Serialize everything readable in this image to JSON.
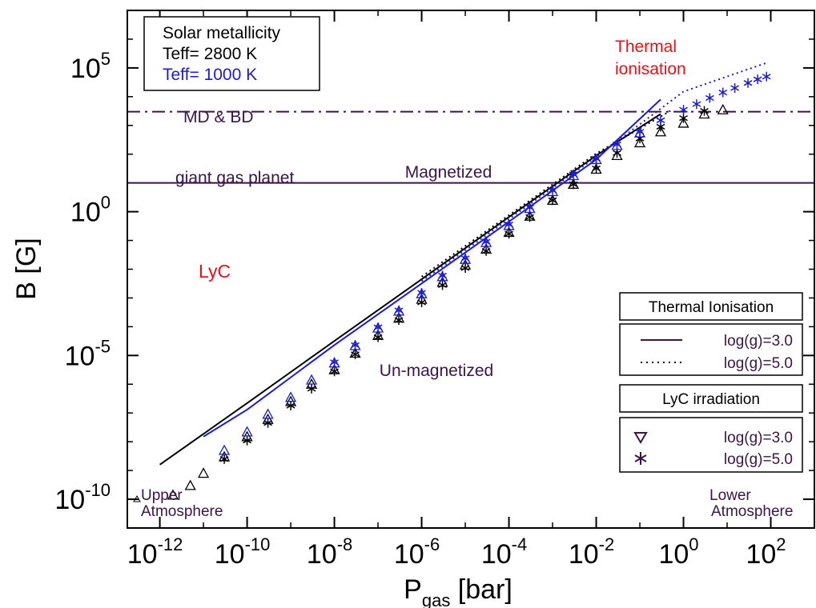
{
  "chart_data": {
    "type": "scatter",
    "xlabel": "P",
    "xlabel_sub": "gas",
    "xlabel_unit": " [bar]",
    "ylabel": "B [G]",
    "x_scale": "log",
    "y_scale": "log",
    "xlim": [
      1.8e-13,
      1000
    ],
    "ylim": [
      1e-11,
      10000000.0
    ],
    "x_ticks": [
      {
        "base": "10",
        "exp": "-12",
        "value": 1e-12
      },
      {
        "base": "10",
        "exp": "-10",
        "value": 1e-10
      },
      {
        "base": "10",
        "exp": "-8",
        "value": 1e-08
      },
      {
        "base": "10",
        "exp": "-6",
        "value": 1e-06
      },
      {
        "base": "10",
        "exp": "-4",
        "value": 0.0001
      },
      {
        "base": "10",
        "exp": "-2",
        "value": 0.01
      },
      {
        "base": "10",
        "exp": "0",
        "value": 1
      },
      {
        "base": "10",
        "exp": "2",
        "value": 100
      }
    ],
    "y_ticks": [
      {
        "base": "10",
        "exp": "-10",
        "value": 1e-10
      },
      {
        "base": "10",
        "exp": "-5",
        "value": 1e-05
      },
      {
        "base": "10",
        "exp": "0",
        "value": 1
      },
      {
        "base": "10",
        "exp": "5",
        "value": 100000
      }
    ],
    "reference_lines": [
      {
        "label": "MD & BD",
        "y": 3000,
        "style": "dash-dot",
        "color": "#3b1548"
      },
      {
        "label": "giant gas planet",
        "y": 10,
        "style": "solid",
        "color": "#3b1548"
      }
    ],
    "annotations": [
      {
        "text": "Thermal",
        "color": "#e8111a",
        "x": 10,
        "y": 220000
      },
      {
        "text": "ionisation",
        "color": "#e8111a",
        "x": 10,
        "y": 55000
      },
      {
        "text": "Magnetized",
        "color": "#3b1548",
        "x": 8e-06,
        "y": 25
      },
      {
        "text": "LyC",
        "color": "#e8111a",
        "x": 2e-11,
        "y": 0.002
      },
      {
        "text": "Un-magnetized",
        "color": "#3b1548",
        "x": 1e-05,
        "y": 3e-06
      },
      {
        "text": "Upper",
        "color": "#3b1548",
        "x": 6e-12,
        "y": 3.3e-10
      },
      {
        "text": "Atmosphere",
        "color": "#3b1548",
        "x": 6e-12,
        "y": 5.5e-11
      },
      {
        "text": "Lower",
        "color": "#3b1548",
        "x": 20,
        "y": 3.3e-10
      },
      {
        "text": "Atmosphere",
        "color": "#3b1548",
        "x": 20,
        "y": 5.5e-11
      }
    ],
    "legend_top_left": {
      "entries": [
        {
          "text": "Solar metallicity",
          "color": "#000000"
        },
        {
          "text": "Teff= 2800 K",
          "color": "#000000"
        },
        {
          "text": "Teff= 1000 K",
          "color": "#1a1ad6"
        }
      ]
    },
    "legend_thermal": {
      "title": "Thermal Ionisation",
      "entries": [
        {
          "text": "log(g)=3.0",
          "style": "solid"
        },
        {
          "text": "log(g)=5.0",
          "style": "dotted"
        }
      ]
    },
    "legend_lyc": {
      "title": "LyC irradiation",
      "entries": [
        {
          "text": "log(g)=3.0",
          "marker": "triangle"
        },
        {
          "text": "log(g)=5.0",
          "marker": "asterisk"
        }
      ]
    },
    "series": [
      {
        "teff": "2800 K",
        "model": "Thermal Ionisation",
        "logg": "3.0",
        "style": "solid",
        "color": "#000000",
        "x": [
          1e-12,
          1e-10,
          1e-08,
          1e-06,
          0.0001,
          0.01,
          0.3
        ],
        "y": [
          1.6e-09,
          2.2e-07,
          3.2e-05,
          0.0045,
          0.65,
          90,
          2500
        ]
      },
      {
        "teff": "2800 K",
        "model": "Thermal Ionisation",
        "logg": "5.0",
        "style": "dotted",
        "color": "#000000",
        "x": [
          1e-06,
          0.0001,
          0.01,
          0.5
        ],
        "y": [
          0.0055,
          0.75,
          105,
          3200
        ]
      },
      {
        "teff": "1000 K",
        "model": "Thermal Ionisation",
        "logg": "3.0",
        "style": "solid",
        "color": "#1a1ad6",
        "x": [
          1e-11,
          1e-10,
          1e-08,
          1e-06,
          0.0001,
          0.01,
          0.3
        ],
        "y": [
          1.5e-08,
          1.3e-07,
          2.3e-05,
          0.0032,
          0.45,
          65,
          8000
        ]
      },
      {
        "teff": "1000 K",
        "model": "Thermal Ionisation",
        "logg": "5.0",
        "style": "dotted",
        "color": "#1a1ad6",
        "x": [
          1e-06,
          0.0001,
          0.01,
          1,
          80
        ],
        "y": [
          0.0038,
          0.55,
          80,
          15000,
          150000
        ]
      },
      {
        "teff": "2800 K",
        "model": "LyC irradiation",
        "logg": "3.0",
        "marker": "triangle",
        "color": "#000000",
        "x": [
          2e-12,
          5e-12,
          1e-11,
          3e-11,
          1e-10,
          3e-10,
          1e-09,
          3e-09,
          1e-08,
          3e-08,
          1e-07,
          3e-07,
          1e-06,
          3e-06,
          1e-05,
          3e-05,
          0.0001,
          0.0003,
          0.001,
          0.003,
          0.01,
          0.03,
          0.1,
          0.3,
          1,
          3,
          8
        ],
        "y": [
          1.4e-10,
          3e-10,
          8e-10,
          3e-09,
          1.5e-08,
          6e-08,
          2.5e-07,
          1e-06,
          3.2e-06,
          1.2e-05,
          5e-05,
          0.0002,
          0.0009,
          0.0035,
          0.014,
          0.05,
          0.19,
          0.7,
          2.5,
          9,
          30,
          90,
          250,
          600,
          1200,
          2500,
          3500
        ]
      },
      {
        "teff": "2800 K",
        "model": "LyC irradiation",
        "logg": "5.0",
        "marker": "asterisk",
        "color": "#000000",
        "x": [
          3e-11,
          1e-10,
          3e-10,
          1e-09,
          3e-09,
          1e-08,
          3e-08,
          1e-07,
          3e-07,
          1e-06,
          3e-06,
          1e-05,
          3e-05,
          0.0001,
          0.0003,
          0.001,
          0.003,
          0.01,
          0.03,
          0.1,
          0.3,
          1,
          3
        ],
        "y": [
          2.5e-09,
          1.1e-08,
          4.5e-08,
          1.8e-07,
          7e-07,
          2.8e-06,
          1.1e-05,
          4.3e-05,
          0.00017,
          0.0007,
          0.0028,
          0.011,
          0.043,
          0.17,
          0.65,
          2.5,
          9,
          32,
          110,
          350,
          900,
          1800,
          3200
        ]
      },
      {
        "teff": "1000 K",
        "model": "LyC irradiation",
        "logg": "3.0",
        "marker": "triangle",
        "color": "#1a1ad6",
        "x": [
          3e-11,
          1e-10,
          3e-10,
          1e-09,
          3e-09,
          1e-08,
          3e-08,
          1e-07,
          3e-07,
          1e-06,
          3e-06,
          1e-05,
          3e-05,
          0.0001,
          0.0003,
          0.001,
          0.003,
          0.01,
          0.03,
          0.1
        ],
        "y": [
          5e-09,
          2.2e-08,
          9e-08,
          3.5e-07,
          1.4e-06,
          5.5e-06,
          2.2e-05,
          9e-05,
          0.00035,
          0.0014,
          0.0055,
          0.022,
          0.085,
          0.33,
          1.3,
          5,
          18,
          65,
          200,
          550
        ]
      },
      {
        "teff": "1000 K",
        "model": "LyC irradiation",
        "logg": "5.0",
        "marker": "asterisk",
        "color": "#1a1ad6",
        "x": [
          1e-08,
          3e-08,
          1e-07,
          3e-07,
          1e-06,
          3e-06,
          1e-05,
          3e-05,
          0.0001,
          0.0003,
          0.001,
          0.003,
          0.01,
          0.03,
          0.1,
          0.3,
          1,
          2,
          4,
          8,
          15,
          30,
          50,
          80
        ],
        "y": [
          5.8e-06,
          2.3e-05,
          9.5e-05,
          0.00037,
          0.0015,
          0.006,
          0.024,
          0.09,
          0.36,
          1.4,
          5.5,
          20,
          70,
          220,
          600,
          1500,
          3500,
          5500,
          9000,
          14000,
          20000,
          30000,
          40000,
          50000
        ]
      }
    ]
  }
}
